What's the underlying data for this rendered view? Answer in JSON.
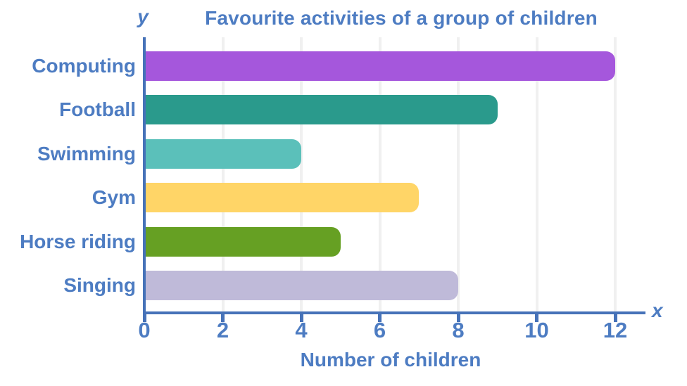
{
  "title": "Favourite activities of a group of children",
  "axis": {
    "y_label": "y",
    "x_label": "x",
    "x_title": "Number of children"
  },
  "chart_data": {
    "type": "bar",
    "orientation": "horizontal",
    "title": "Favourite activities of a group of children",
    "categories": [
      "Computing",
      "Football",
      "Swimming",
      "Gym",
      "Horse riding",
      "Singing"
    ],
    "values": [
      12,
      9,
      4,
      7,
      5,
      8
    ],
    "bar_colors": [
      "#a557dc",
      "#2a9a8c",
      "#5bc0ba",
      "#ffd567",
      "#66a023",
      "#bfbad9"
    ],
    "xlabel": "Number of children",
    "ylabel": "",
    "xlim": [
      0,
      12
    ],
    "x_ticks": [
      0,
      2,
      4,
      6,
      8,
      10,
      12
    ],
    "gridlines_at": [
      2,
      4,
      6,
      8,
      10,
      12
    ],
    "grid": true,
    "legend": false
  },
  "colors": {
    "label_text": "#4d7cc2",
    "axis_line": "#4672b8",
    "gridline": "#f0f0f0",
    "background": "#ffffff"
  }
}
